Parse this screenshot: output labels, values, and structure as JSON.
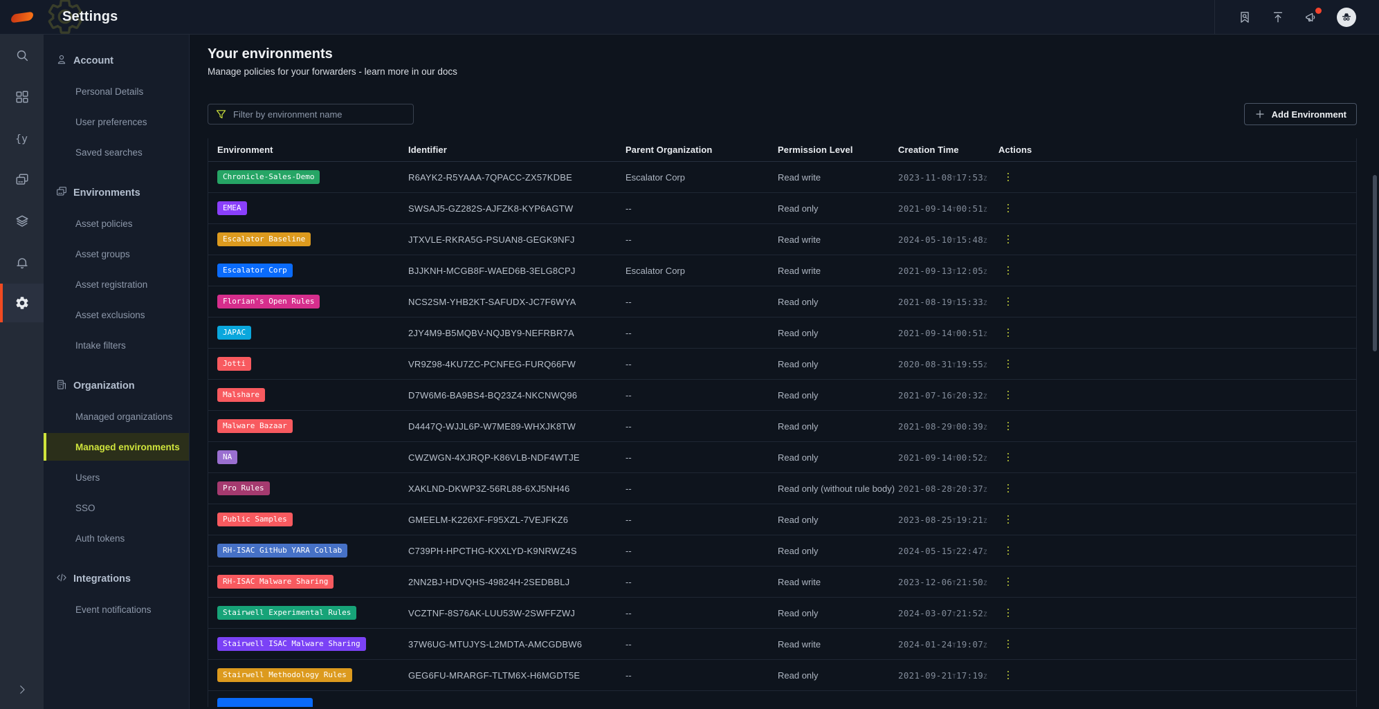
{
  "topbar": {
    "title": "Settings",
    "icons": [
      "bookmark-search-icon",
      "upload-icon",
      "announcements-icon",
      "avatar"
    ]
  },
  "rail": {
    "icons": [
      "search-icon",
      "dashboard-icon",
      "yara-icon",
      "assets-icon",
      "layers-icon",
      "notifications-icon",
      "settings-icon",
      "expand-icon"
    ],
    "yara_glyph": "{y",
    "active": "settings-icon",
    "accent": "#f04a21"
  },
  "sidebar": {
    "sections": [
      {
        "title": "Account",
        "icon": "person-icon",
        "items": [
          {
            "label": "Personal Details"
          },
          {
            "label": "User preferences"
          },
          {
            "label": "Saved searches"
          }
        ]
      },
      {
        "title": "Environments",
        "icon": "devices-icon",
        "items": [
          {
            "label": "Asset policies"
          },
          {
            "label": "Asset groups"
          },
          {
            "label": "Asset registration"
          },
          {
            "label": "Asset exclusions"
          },
          {
            "label": "Intake filters"
          }
        ]
      },
      {
        "title": "Organization",
        "icon": "building-icon",
        "items": [
          {
            "label": "Managed organizations"
          },
          {
            "label": "Managed environments",
            "active": true
          },
          {
            "label": "Users"
          },
          {
            "label": "SSO"
          },
          {
            "label": "Auth tokens"
          }
        ]
      },
      {
        "title": "Integrations",
        "icon": "code-icon",
        "items": [
          {
            "label": "Event notifications"
          }
        ]
      }
    ],
    "active_color": "#cfe43c"
  },
  "main": {
    "title": "Your environments",
    "subtitle": "Manage policies for your forwarders - learn more in our docs",
    "filter_placeholder": "Filter by environment name",
    "add_button_label": "Add Environment",
    "table": {
      "columns": [
        "Environment",
        "Identifier",
        "Parent Organization",
        "Permission Level",
        "Creation Time",
        "Actions"
      ],
      "rows": [
        {
          "name": "Chronicle-Sales-Demo",
          "color": "#26a565",
          "identifier": "R6AYK2-R5YAAA-7QPACC-ZX57KDBE",
          "parent": "Escalator Corp",
          "permission": "Read write",
          "created": "2023-11-08T17:53Z"
        },
        {
          "name": "EMEA",
          "color": "#8a3ffc",
          "identifier": "SWSAJ5-GZ282S-AJFZK8-KYP6AGTW",
          "parent": "--",
          "permission": "Read only",
          "created": "2021-09-14T00:51Z"
        },
        {
          "name": "Escalator Baseline",
          "color": "#dc9a1e",
          "identifier": "JTXVLE-RKRA5G-PSUAN8-GEGK9NFJ",
          "parent": "--",
          "permission": "Read write",
          "created": "2024-05-10T15:48Z"
        },
        {
          "name": "Escalator Corp",
          "color": "#0a6bfb",
          "identifier": "BJJKNH-MCGB8F-WAED6B-3ELG8CPJ",
          "parent": "Escalator Corp",
          "permission": "Read write",
          "created": "2021-09-13T12:05Z"
        },
        {
          "name": "Florian's Open Rules",
          "color": "#d62e8c",
          "identifier": "NCS2SM-YHB2KT-SAFUDX-JC7F6WYA",
          "parent": "--",
          "permission": "Read only",
          "created": "2021-08-19T15:33Z"
        },
        {
          "name": "JAPAC",
          "color": "#0aa7dd",
          "identifier": "2JY4M9-B5MQBV-NQJBY9-NEFRBR7A",
          "parent": "--",
          "permission": "Read only",
          "created": "2021-09-14T00:51Z"
        },
        {
          "name": "Jotti",
          "color": "#f85a5f",
          "identifier": "VR9Z98-4KU7ZC-PCNFEG-FURQ66FW",
          "parent": "--",
          "permission": "Read only",
          "created": "2020-08-31T19:55Z"
        },
        {
          "name": "Malshare",
          "color": "#f85a5f",
          "identifier": "D7W6M6-BA9BS4-BQ23Z4-NKCNWQ96",
          "parent": "--",
          "permission": "Read only",
          "created": "2021-07-16T20:32Z"
        },
        {
          "name": "Malware Bazaar",
          "color": "#f85a5f",
          "identifier": "D4447Q-WJJL6P-W7ME89-WHXJK8TW",
          "parent": "--",
          "permission": "Read only",
          "created": "2021-08-29T00:39Z"
        },
        {
          "name": "NA",
          "color": "#9a6fd0",
          "identifier": "CWZWGN-4XJRQP-K86VLB-NDF4WTJE",
          "parent": "--",
          "permission": "Read only",
          "created": "2021-09-14T00:52Z"
        },
        {
          "name": "Pro Rules",
          "color": "#a53a6f",
          "identifier": "XAKLND-DKWP3Z-56RL88-6XJ5NH46",
          "parent": "--",
          "permission": "Read only (without rule body)",
          "created": "2021-08-28T20:37Z"
        },
        {
          "name": "Public Samples",
          "color": "#f85a5f",
          "identifier": "GMEELM-K226XF-F95XZL-7VEJFKZ6",
          "parent": "--",
          "permission": "Read only",
          "created": "2023-08-25T19:21Z"
        },
        {
          "name": "RH-ISAC GitHub YARA Collab",
          "color": "#4671c6",
          "identifier": "C739PH-HPCTHG-KXXLYD-K9NRWZ4S",
          "parent": "--",
          "permission": "Read only",
          "created": "2024-05-15T22:47Z"
        },
        {
          "name": "RH-ISAC Malware Sharing",
          "color": "#f85a5f",
          "identifier": "2NN2BJ-HDVQHS-49824H-2SEDBBLJ",
          "parent": "--",
          "permission": "Read write",
          "created": "2023-12-06T21:50Z"
        },
        {
          "name": "Stairwell Experimental Rules",
          "color": "#17a378",
          "identifier": "VCZTNF-8S76AK-LUU53W-2SWFFZWJ",
          "parent": "--",
          "permission": "Read only",
          "created": "2024-03-07T21:52Z"
        },
        {
          "name": "Stairwell ISAC Malware Sharing",
          "color": "#7b42f6",
          "identifier": "37W6UG-MTUJYS-L2MDTA-AMCGDBW6",
          "parent": "--",
          "permission": "Read write",
          "created": "2024-01-24T19:07Z"
        },
        {
          "name": "Stairwell Methodology Rules",
          "color": "#dc9a1e",
          "identifier": "GEG6FU-MRARGF-TLTM6X-H6MGDT5E",
          "parent": "--",
          "permission": "Read only",
          "created": "2021-09-21T17:19Z"
        }
      ],
      "partial_row_color": "#0a6bfb"
    }
  }
}
